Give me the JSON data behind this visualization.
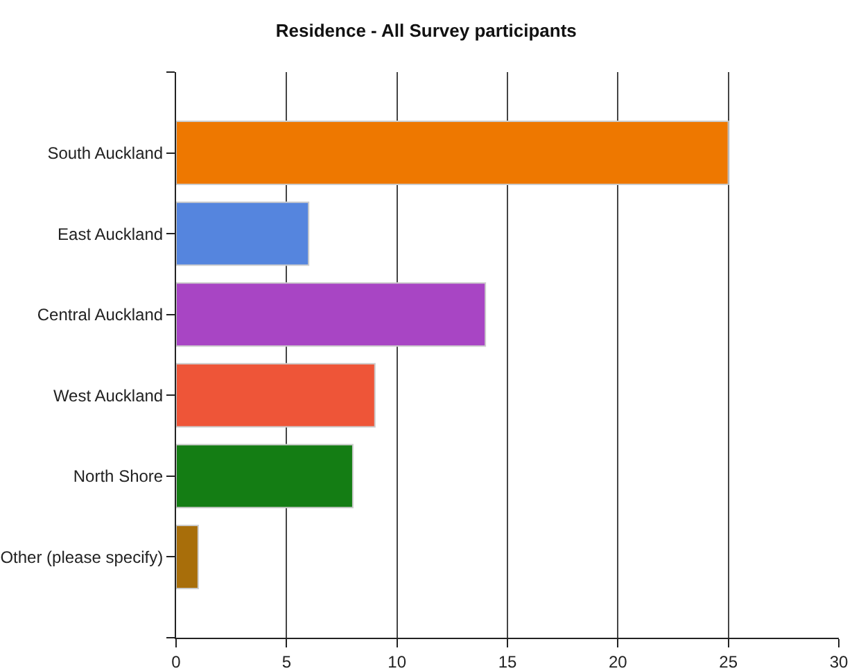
{
  "chart_data": {
    "type": "bar",
    "title": "Residence - All Survey participants",
    "orientation": "horizontal",
    "categories": [
      "South Auckland",
      "East Auckland",
      "Central Auckland",
      "West Auckland",
      "North Shore",
      "Other (please specify)"
    ],
    "values": [
      25,
      6,
      14,
      9,
      8,
      1
    ],
    "colors": [
      "#ee7800",
      "#5585de",
      "#a845c4",
      "#ee5538",
      "#147d14",
      "#a86e0a"
    ],
    "xlim": [
      0,
      30
    ],
    "xticks": [
      0,
      5,
      10,
      15,
      20,
      25,
      30
    ],
    "grid": "x"
  }
}
